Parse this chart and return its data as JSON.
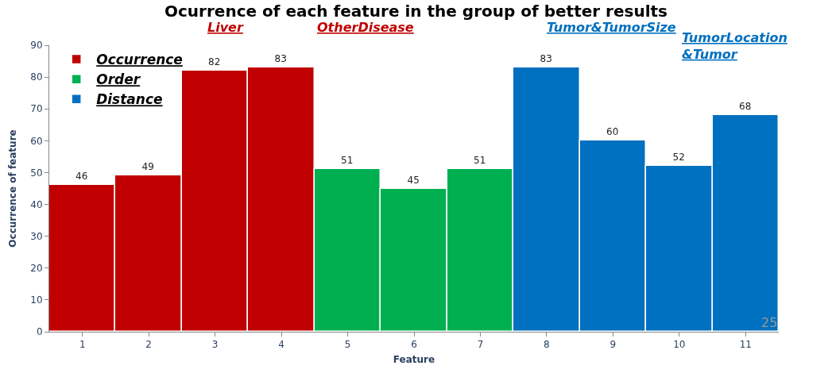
{
  "chart_data": {
    "type": "bar",
    "title": "Ocurrence of each feature in the group of better results",
    "xlabel": "Feature",
    "ylabel": "Occurrence of feature",
    "categories": [
      "1",
      "2",
      "3",
      "4",
      "5",
      "6",
      "7",
      "8",
      "9",
      "10",
      "11"
    ],
    "series": [
      {
        "name": "Occurrence",
        "color": "#c00000",
        "values": [
          46,
          49,
          82,
          83,
          null,
          null,
          null,
          null,
          null,
          null,
          null
        ]
      },
      {
        "name": "Order",
        "color": "#00b050",
        "values": [
          null,
          null,
          null,
          null,
          51,
          45,
          51,
          null,
          null,
          null,
          null
        ]
      },
      {
        "name": "Distance",
        "color": "#0070c0",
        "values": [
          null,
          null,
          null,
          null,
          null,
          null,
          null,
          83,
          60,
          52,
          68
        ]
      }
    ],
    "ylim": [
      0,
      90
    ],
    "yticks": [
      0,
      10,
      20,
      30,
      40,
      50,
      60,
      70,
      80,
      90
    ],
    "legend": "top left",
    "data_labels": true,
    "annotations": [
      "Liver",
      "OtherDisease",
      "Tumor&TumorSize",
      "TumorLocation\n&Tumor",
      "25"
    ]
  }
}
